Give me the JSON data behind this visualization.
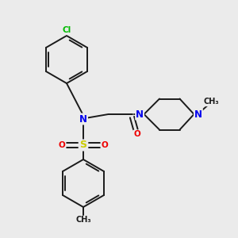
{
  "background_color": "#ebebeb",
  "bond_color": "#1a1a1a",
  "atom_colors": {
    "Cl": "#00bb00",
    "N": "#0000ee",
    "O": "#ee0000",
    "S": "#cccc00",
    "C": "#1a1a1a"
  },
  "figsize": [
    3.0,
    3.0
  ],
  "dpi": 100
}
